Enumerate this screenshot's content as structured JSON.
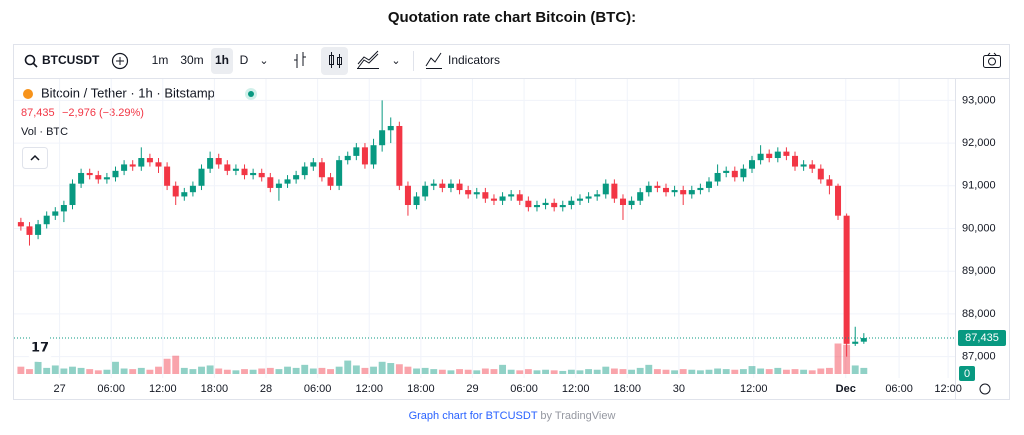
{
  "title": "Quotation rate chart Bitcoin (BTC):",
  "toolbar": {
    "symbol": "BTCUSDT",
    "intervals": [
      "1m",
      "30m",
      "1h",
      "D"
    ],
    "active_interval": 2,
    "indicators": "Indicators"
  },
  "legend": {
    "name": "Bitcoin / Tether · 1h · Bitstamp",
    "last": "87,435",
    "change": "−2,976 (−3.29%)",
    "volume": "Vol · BTC"
  },
  "footer": {
    "link": "Graph chart for BTCUSDT",
    "by": "by TradingView"
  },
  "chart_data": {
    "type": "candlestick",
    "up_color": "#089981",
    "down_color": "#f23645",
    "open": [
      90150,
      90050,
      89850,
      90100,
      90300,
      90400,
      90550,
      91050,
      91300,
      91250,
      91150,
      91200,
      91350,
      91500,
      91450,
      91650,
      91550,
      91450,
      91000,
      90750,
      90850,
      91000,
      91400,
      91650,
      91500,
      91350,
      91400,
      91250,
      91300,
      91200,
      90950,
      91050,
      91150,
      91250,
      91450,
      91550,
      91200,
      91000,
      91600,
      91700,
      91900,
      91500,
      91950,
      92300,
      92400,
      91000,
      90550,
      90750,
      91000,
      91050,
      90950,
      91050,
      90900,
      90800,
      90850,
      90700,
      90650,
      90750,
      90800,
      90650,
      90500,
      90550,
      90600,
      90500,
      90550,
      90650,
      90700,
      90750,
      90800,
      91050,
      90700,
      90550,
      90650,
      90850,
      91000,
      90950,
      90850,
      90900,
      90800,
      90900,
      90950,
      91100,
      91300,
      91350,
      91200,
      91400,
      91600,
      91750,
      91650,
      91800,
      91700,
      91450,
      91500,
      91400,
      91150,
      91000,
      90300,
      87300,
      87350
    ],
    "high": [
      90250,
      90150,
      90200,
      90400,
      90500,
      90650,
      91150,
      91400,
      91400,
      91350,
      91300,
      91450,
      91600,
      91600,
      91900,
      91750,
      91650,
      91550,
      91100,
      90950,
      91100,
      91500,
      91800,
      91750,
      91600,
      91500,
      91500,
      91400,
      91400,
      91300,
      91150,
      91250,
      91350,
      91550,
      91650,
      91650,
      91300,
      91700,
      91800,
      92000,
      92000,
      92100,
      93000,
      92600,
      92500,
      91100,
      90850,
      91100,
      91150,
      91150,
      91150,
      91150,
      91000,
      90950,
      90950,
      90800,
      90850,
      90900,
      90900,
      90750,
      90650,
      90700,
      90700,
      90650,
      90750,
      90800,
      90850,
      90900,
      91150,
      91150,
      90800,
      90750,
      90950,
      91100,
      91100,
      91050,
      91000,
      91000,
      91000,
      91050,
      91200,
      91500,
      91450,
      91450,
      91500,
      91700,
      91950,
      91850,
      91900,
      91900,
      91800,
      91600,
      91600,
      91500,
      91250,
      91050,
      90350,
      87700,
      87550
    ],
    "low": [
      89950,
      89600,
      89750,
      90000,
      90200,
      90150,
      90450,
      90950,
      91150,
      91050,
      91050,
      91100,
      91250,
      91350,
      91350,
      91450,
      91300,
      90900,
      90550,
      90650,
      90750,
      90900,
      91300,
      91400,
      91250,
      91250,
      91150,
      91150,
      91100,
      90850,
      90650,
      90950,
      91050,
      91150,
      91350,
      91100,
      90900,
      90900,
      91500,
      91600,
      91400,
      91400,
      91800,
      92000,
      90900,
      90300,
      90450,
      90650,
      90900,
      90850,
      90850,
      90800,
      90700,
      90700,
      90600,
      90550,
      90550,
      90650,
      90550,
      90400,
      90400,
      90450,
      90400,
      90400,
      90450,
      90550,
      90600,
      90650,
      90700,
      90600,
      90200,
      90450,
      90550,
      90750,
      90850,
      90750,
      90750,
      90550,
      90700,
      90800,
      90850,
      91000,
      91200,
      91100,
      91100,
      91300,
      91500,
      91550,
      91550,
      91600,
      91350,
      91350,
      91300,
      91050,
      90800,
      90200,
      87000,
      87250,
      87300
    ],
    "close": [
      90050,
      89850,
      90100,
      90300,
      90400,
      90550,
      91050,
      91300,
      91250,
      91150,
      91200,
      91350,
      91500,
      91450,
      91650,
      91550,
      91450,
      91000,
      90750,
      90850,
      91000,
      91400,
      91650,
      91500,
      91350,
      91400,
      91250,
      91300,
      91200,
      90950,
      91050,
      91150,
      91250,
      91450,
      91550,
      91200,
      91000,
      91600,
      91700,
      91900,
      91500,
      91950,
      92300,
      92400,
      91000,
      90550,
      90750,
      91000,
      91050,
      90950,
      91050,
      90900,
      90800,
      90850,
      90700,
      90650,
      90750,
      90800,
      90650,
      90500,
      90550,
      90600,
      90500,
      90550,
      90650,
      90700,
      90750,
      90800,
      91050,
      90700,
      90550,
      90650,
      90850,
      91000,
      90950,
      90850,
      90900,
      90800,
      90900,
      90950,
      91100,
      91300,
      91350,
      91200,
      91400,
      91600,
      91750,
      91650,
      91800,
      91700,
      91450,
      91500,
      91400,
      91150,
      91000,
      90300,
      87300,
      87350,
      87435
    ],
    "volume": [
      12,
      8,
      20,
      10,
      14,
      9,
      12,
      10,
      8,
      6,
      7,
      20,
      9,
      8,
      10,
      7,
      12,
      25,
      30,
      10,
      8,
      12,
      14,
      9,
      7,
      6,
      8,
      7,
      9,
      10,
      8,
      12,
      10,
      15,
      9,
      10,
      8,
      12,
      22,
      14,
      10,
      12,
      20,
      18,
      16,
      12,
      9,
      10,
      8,
      7,
      6,
      8,
      7,
      6,
      9,
      8,
      15,
      7,
      6,
      8,
      6,
      7,
      6,
      5,
      7,
      6,
      8,
      7,
      12,
      9,
      8,
      7,
      10,
      15,
      8,
      7,
      6,
      8,
      7,
      6,
      7,
      9,
      8,
      7,
      8,
      13,
      9,
      8,
      10,
      7,
      8,
      7,
      6,
      9,
      10,
      50,
      48,
      14,
      10
    ],
    "xlim": [
      -0.8,
      108.6
    ],
    "xticks": [
      {
        "value": 4.5,
        "label": "27"
      },
      {
        "value": 10.5,
        "label": "06:00"
      },
      {
        "value": 16.5,
        "label": "12:00"
      },
      {
        "value": 22.5,
        "label": "18:00"
      },
      {
        "value": 28.5,
        "label": "28"
      },
      {
        "value": 34.5,
        "label": "06:00"
      },
      {
        "value": 40.5,
        "label": "12:00"
      },
      {
        "value": 46.5,
        "label": "18:00"
      },
      {
        "value": 52.5,
        "label": "29"
      },
      {
        "value": 58.5,
        "label": "06:00"
      },
      {
        "value": 64.5,
        "label": "12:00"
      },
      {
        "value": 70.5,
        "label": "18:00"
      },
      {
        "value": 76.5,
        "label": "30"
      },
      {
        "value": 85.2,
        "label": "12:00"
      },
      {
        "value": 95.9,
        "label": "Dec"
      },
      {
        "value": 102.1,
        "label": "06:00"
      },
      {
        "value": 107.8,
        "label": "12:00"
      }
    ],
    "bold_xtick": 14,
    "ylim": [
      86500,
      93500
    ],
    "yticks": [
      {
        "value": 87000,
        "label": "87,000"
      },
      {
        "value": 88000,
        "label": "88,000"
      },
      {
        "value": 89000,
        "label": "89,000"
      },
      {
        "value": 90000,
        "label": "90,000"
      },
      {
        "value": 91000,
        "label": "91,000"
      },
      {
        "value": 92000,
        "label": "92,000"
      },
      {
        "value": 93000,
        "label": "93,000"
      }
    ],
    "last_price": {
      "value": 87435,
      "label": "87,435"
    },
    "vol_ylim": [
      0,
      100
    ],
    "vol_ticks": [
      0
    ],
    "grid": true
  }
}
